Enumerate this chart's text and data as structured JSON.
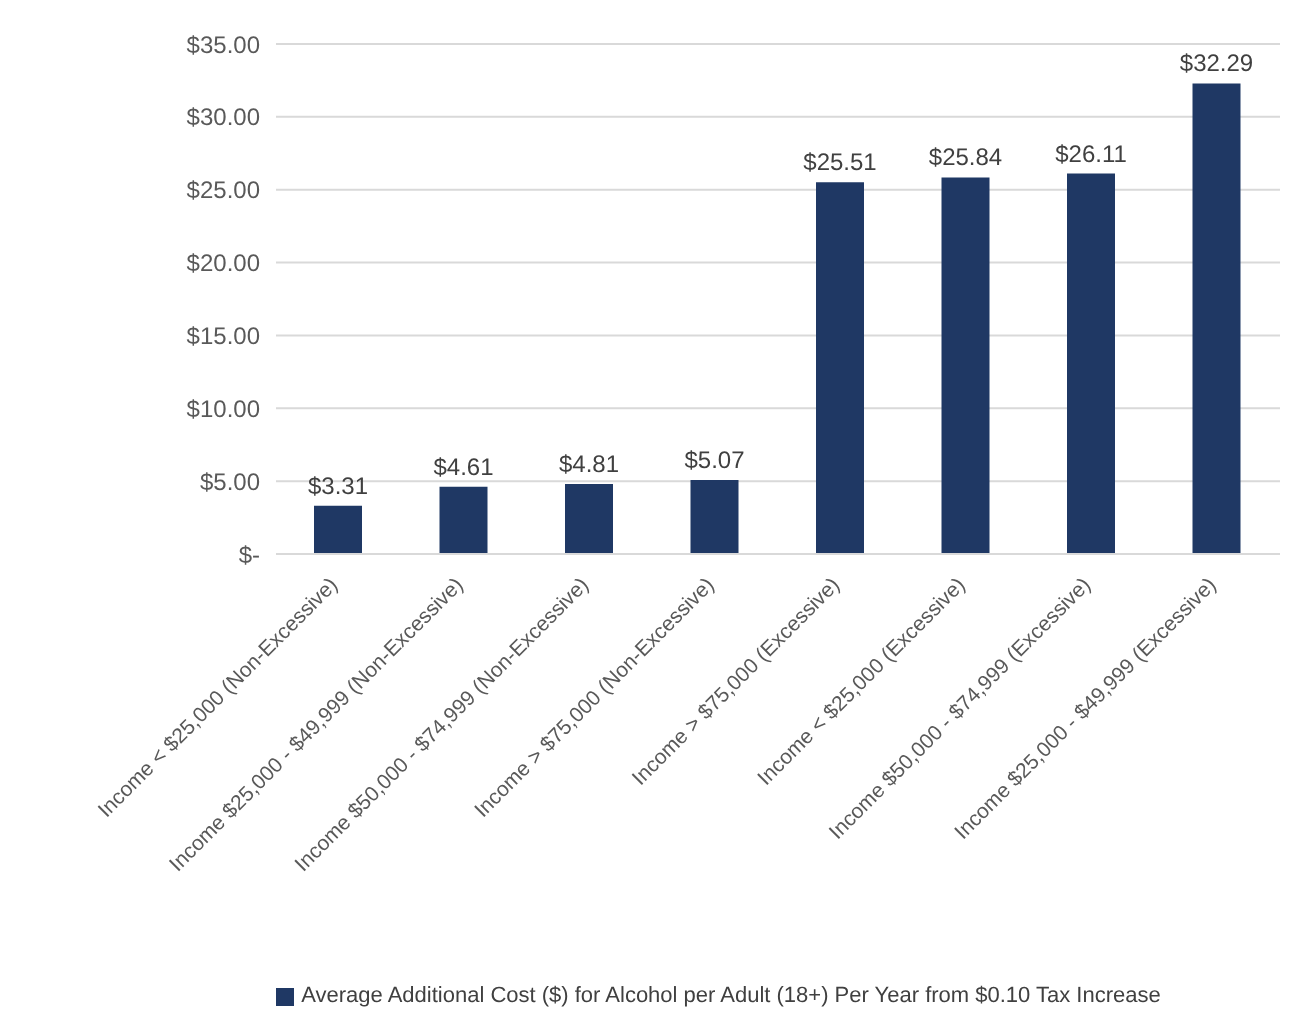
{
  "chart_data": {
    "type": "bar",
    "categories": [
      "Income < $25,000 (Non-Excessive)",
      "Income $25,000 - $49,999 (Non-Excessive)",
      "Income $50,000 - $74,999 (Non-Excessive)",
      "Income > $75,000 (Non-Excessive)",
      "Income > $75,000 (Excessive)",
      "Income < $25,000 (Excessive)",
      "Income $50,000 - $74,999 (Excessive)",
      "Income $25,000 - $49,999 (Excessive)"
    ],
    "series": [
      {
        "name": "Average Additional Cost ($) for Alcohol per Adult (18+) Per Year from $0.10 Tax Increase",
        "color": "#1f3864",
        "values": [
          3.31,
          4.61,
          4.81,
          5.07,
          25.51,
          25.84,
          26.11,
          32.29
        ],
        "value_labels": [
          "$3.31",
          "$4.61",
          "$4.81",
          "$5.07",
          "$25.51",
          "$25.84",
          "$26.11",
          "$32.29"
        ]
      }
    ],
    "ylim": [
      0,
      35
    ],
    "yticks": [
      {
        "value": 0,
        "label": "$-"
      },
      {
        "value": 5,
        "label": "$5.00"
      },
      {
        "value": 10,
        "label": "$10.00"
      },
      {
        "value": 15,
        "label": "$15.00"
      },
      {
        "value": 20,
        "label": "$20.00"
      },
      {
        "value": 25,
        "label": "$25.00"
      },
      {
        "value": 30,
        "label": "$30.00"
      },
      {
        "value": 35,
        "label": "$35.00"
      }
    ],
    "grid": "y",
    "legend": "bottom"
  }
}
